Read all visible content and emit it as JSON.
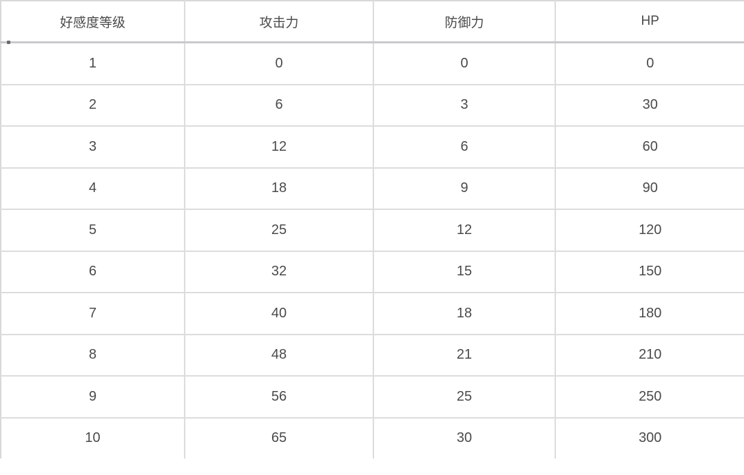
{
  "colors": {
    "background": "#ffffff",
    "border": "#dcdcdc",
    "header_separator": "#c9c9cd",
    "text": "#4a4a4a"
  },
  "table": {
    "headers": [
      "好感度等级",
      "攻击力",
      "防御力",
      "HP"
    ],
    "rows": [
      {
        "cells": [
          "1",
          "0",
          "0",
          "0"
        ]
      },
      {
        "cells": [
          "2",
          "6",
          "3",
          "30"
        ]
      },
      {
        "cells": [
          "3",
          "12",
          "6",
          "60"
        ]
      },
      {
        "cells": [
          "4",
          "18",
          "9",
          "90"
        ]
      },
      {
        "cells": [
          "5",
          "25",
          "12",
          "120"
        ]
      },
      {
        "cells": [
          "6",
          "32",
          "15",
          "150"
        ]
      },
      {
        "cells": [
          "7",
          "40",
          "18",
          "180"
        ]
      },
      {
        "cells": [
          "8",
          "48",
          "21",
          "210"
        ]
      },
      {
        "cells": [
          "9",
          "56",
          "25",
          "250"
        ]
      },
      {
        "cells": [
          "10",
          "65",
          "30",
          "300"
        ]
      }
    ]
  },
  "chart_data": {
    "type": "table",
    "title": "",
    "columns": [
      "好感度等级",
      "攻击力",
      "防御力",
      "HP"
    ],
    "rows": [
      [
        1,
        0,
        0,
        0
      ],
      [
        2,
        6,
        3,
        30
      ],
      [
        3,
        12,
        6,
        60
      ],
      [
        4,
        18,
        9,
        90
      ],
      [
        5,
        25,
        12,
        120
      ],
      [
        6,
        32,
        15,
        150
      ],
      [
        7,
        40,
        18,
        180
      ],
      [
        8,
        48,
        21,
        210
      ],
      [
        9,
        56,
        25,
        250
      ],
      [
        10,
        65,
        30,
        300
      ]
    ]
  }
}
